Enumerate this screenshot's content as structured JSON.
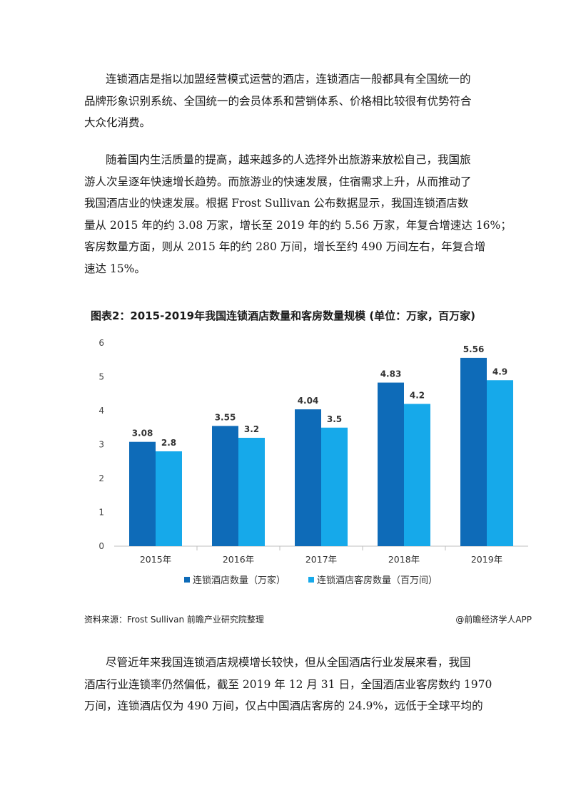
{
  "paragraph1": {
    "lines": [
      "连锁酒店是指以加盟经营模式运营的酒店，连锁酒店一般都具有全国统一的",
      "品牌形象识别系统、全国统一的会员体系和营销体系、价格相比较很有优势符合",
      "大众化消费。"
    ]
  },
  "paragraph2": {
    "lines": [
      "随着国内生活质量的提高，越来越多的人选择外出旅游来放松自己，我国旅",
      "游人次呈逐年快速增长趋势。而旅游业的快速发展，住宿需求上升，从而推动了",
      "我国酒店业的快速发展。根据 Frost Sullivan 公布数据显示，我国连锁酒店数",
      "量从 2015 年的约 3.08 万家，增长至 2019 年的约 5.56 万家，年复合增速达 16%；",
      "客房数量方面，则从 2015 年的约 280 万间，增长至约 490 万间左右，年复合增",
      "速达 15%。"
    ]
  },
  "chart_title": "图表2：2015-2019年我国连锁酒店数量和客房数量规模 (单位：万家，百万家)",
  "chart_data": {
    "type": "bar",
    "categories": [
      "2015年",
      "2016年",
      "2017年",
      "2018年",
      "2019年"
    ],
    "series": [
      {
        "name": "连锁酒店数量（万家）",
        "values": [
          3.08,
          3.55,
          4.04,
          4.83,
          5.56
        ],
        "labels": [
          "3.08",
          "3.55",
          "4.04",
          "4.83",
          "5.56"
        ],
        "color": "#0e6bb8"
      },
      {
        "name": "连锁酒店客房数量（百万间）",
        "values": [
          2.8,
          3.2,
          3.5,
          4.2,
          4.9
        ],
        "labels": [
          "2.8",
          "3.2",
          "3.5",
          "4.2",
          "4.9"
        ],
        "color": "#16a9ea"
      }
    ],
    "yticks": [
      "0",
      "1",
      "2",
      "3",
      "4",
      "5",
      "6"
    ],
    "ylim": [
      0,
      6
    ],
    "grid": false,
    "legend": "bottom"
  },
  "source_left": "资料来源：Frost Sullivan 前瞻产业研究院整理",
  "source_right": "@前瞻经济学人APP",
  "paragraph3": {
    "lines": [
      "尽管近年来我国连锁酒店规模增长较快，但从全国酒店行业发展来看，我国",
      "酒店行业连锁率仍然偏低，截至 2019 年 12 月 31 日，全国酒店业客房数约 1970",
      "万间，连锁酒店仅为 490 万间，仅占中国酒店客房的 24.9%，远低于全球平均的"
    ]
  }
}
